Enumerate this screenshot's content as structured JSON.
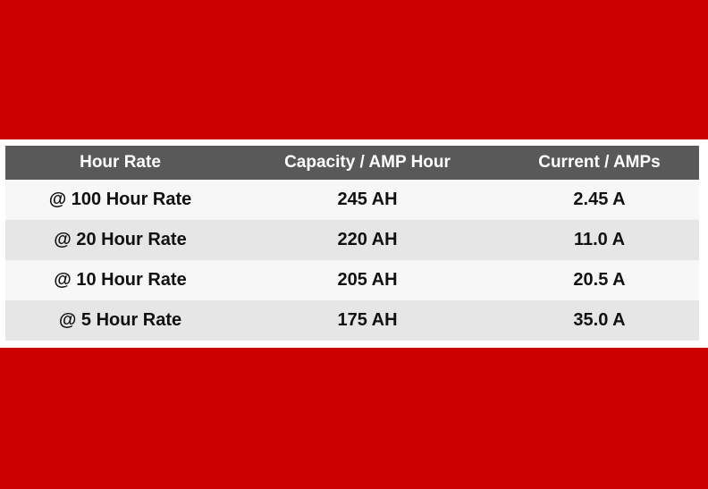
{
  "colors": {
    "band": "#cc0000",
    "header_bg": "#595959",
    "header_text": "#ffffff",
    "row_light": "#f7f7f7",
    "row_dark": "#e6e6e6"
  },
  "table": {
    "headers": [
      "Hour Rate",
      "Capacity / AMP Hour",
      "Current / AMPs"
    ],
    "rows": [
      [
        "@ 100 Hour Rate",
        "245 AH",
        "2.45 A"
      ],
      [
        "@ 20 Hour Rate",
        "220 AH",
        "11.0 A"
      ],
      [
        "@ 10 Hour Rate",
        "205 AH",
        "20.5 A"
      ],
      [
        "@ 5 Hour Rate",
        "175 AH",
        "35.0 A"
      ]
    ]
  }
}
